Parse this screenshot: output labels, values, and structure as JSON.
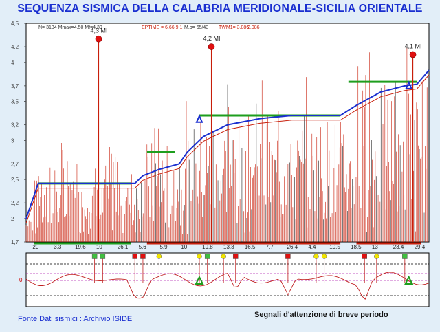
{
  "title": "SEQUENZA SISMICA DELLA CALABRIA MERIDIONALE-SICILIA ORIENTALE",
  "header_info": {
    "left": "N= 3134 Mmax=4.50 Mf=4.39",
    "eptime": "EPTIME = 6.66 9.1",
    "mo": "M.o= 65/43",
    "twm": "TWM1= 3.086",
    "twm2": "2.086"
  },
  "footer": {
    "source": "Fonte Dati sismici : Archivio ISIDE",
    "signals": "Segnali d'attenzione di breve periodo"
  },
  "colors": {
    "title": "#1a2fd0",
    "background": "#e2eef8",
    "panel": "#ffffff",
    "events": "#c81e0a",
    "plateau_green": "#1e9e1e",
    "trend_blue": "#1a2fd0",
    "marker_red": "#e01010",
    "marker_yellow": "#f2e600",
    "marker_green": "#3fbf3f"
  },
  "chart_data": {
    "type": "line",
    "y_ticks": [
      "4,5",
      "4,2",
      "4",
      "3,7",
      "3,5",
      "3,2",
      "3",
      "2,7",
      "2,5",
      "2,2",
      "2",
      "1,7"
    ],
    "ylim": [
      1.7,
      4.5
    ],
    "x_tick_labels": [
      "20",
      "3.3",
      "19.6",
      "10",
      "26.1",
      "5.6",
      "5.9",
      "10",
      "19.8",
      "13.3",
      "16.5",
      "7.7",
      "26.4",
      "4.4",
      "10.5",
      "18.5",
      "13",
      "23.4",
      "29.4"
    ],
    "grid": false,
    "annotations": [
      {
        "label": "4,3 MI",
        "magnitude": 4.3
      },
      {
        "label": "4,2 MI",
        "magnitude": 4.2
      },
      {
        "label": "4,1 MI",
        "magnitude": 4.1
      }
    ],
    "plateaus": [
      {
        "from": 0.03,
        "to": 0.26,
        "level": 2.45
      },
      {
        "from": 0.3,
        "to": 0.37,
        "level": 2.85
      },
      {
        "from": 0.43,
        "to": 0.78,
        "level": 3.32
      },
      {
        "from": 0.8,
        "to": 0.97,
        "level": 3.75
      }
    ],
    "trend": [
      [
        0.0,
        2.0
      ],
      [
        0.03,
        2.45
      ],
      [
        0.27,
        2.45
      ],
      [
        0.29,
        2.55
      ],
      [
        0.33,
        2.63
      ],
      [
        0.38,
        2.7
      ],
      [
        0.4,
        2.85
      ],
      [
        0.44,
        3.05
      ],
      [
        0.5,
        3.2
      ],
      [
        0.58,
        3.28
      ],
      [
        0.66,
        3.32
      ],
      [
        0.78,
        3.32
      ],
      [
        0.82,
        3.45
      ],
      [
        0.88,
        3.62
      ],
      [
        0.94,
        3.7
      ],
      [
        0.97,
        3.72
      ],
      [
        1.0,
        3.9
      ]
    ],
    "warning_triangles": [
      0.43,
      0.95
    ],
    "bottom_panel": {
      "markers": [
        {
          "at": 0.17,
          "color": "green"
        },
        {
          "at": 0.19,
          "color": "green"
        },
        {
          "at": 0.27,
          "color": "red"
        },
        {
          "at": 0.29,
          "color": "red"
        },
        {
          "at": 0.33,
          "color": "yellow"
        },
        {
          "at": 0.43,
          "color": "yellow"
        },
        {
          "at": 0.45,
          "color": "green"
        },
        {
          "at": 0.49,
          "color": "yellow"
        },
        {
          "at": 0.52,
          "color": "red"
        },
        {
          "at": 0.65,
          "color": "red"
        },
        {
          "at": 0.72,
          "color": "yellow"
        },
        {
          "at": 0.74,
          "color": "yellow"
        },
        {
          "at": 0.84,
          "color": "red"
        },
        {
          "at": 0.87,
          "color": "yellow"
        },
        {
          "at": 0.94,
          "color": "green"
        }
      ],
      "y_label": "0",
      "triangles": [
        0.43,
        0.95
      ]
    }
  }
}
